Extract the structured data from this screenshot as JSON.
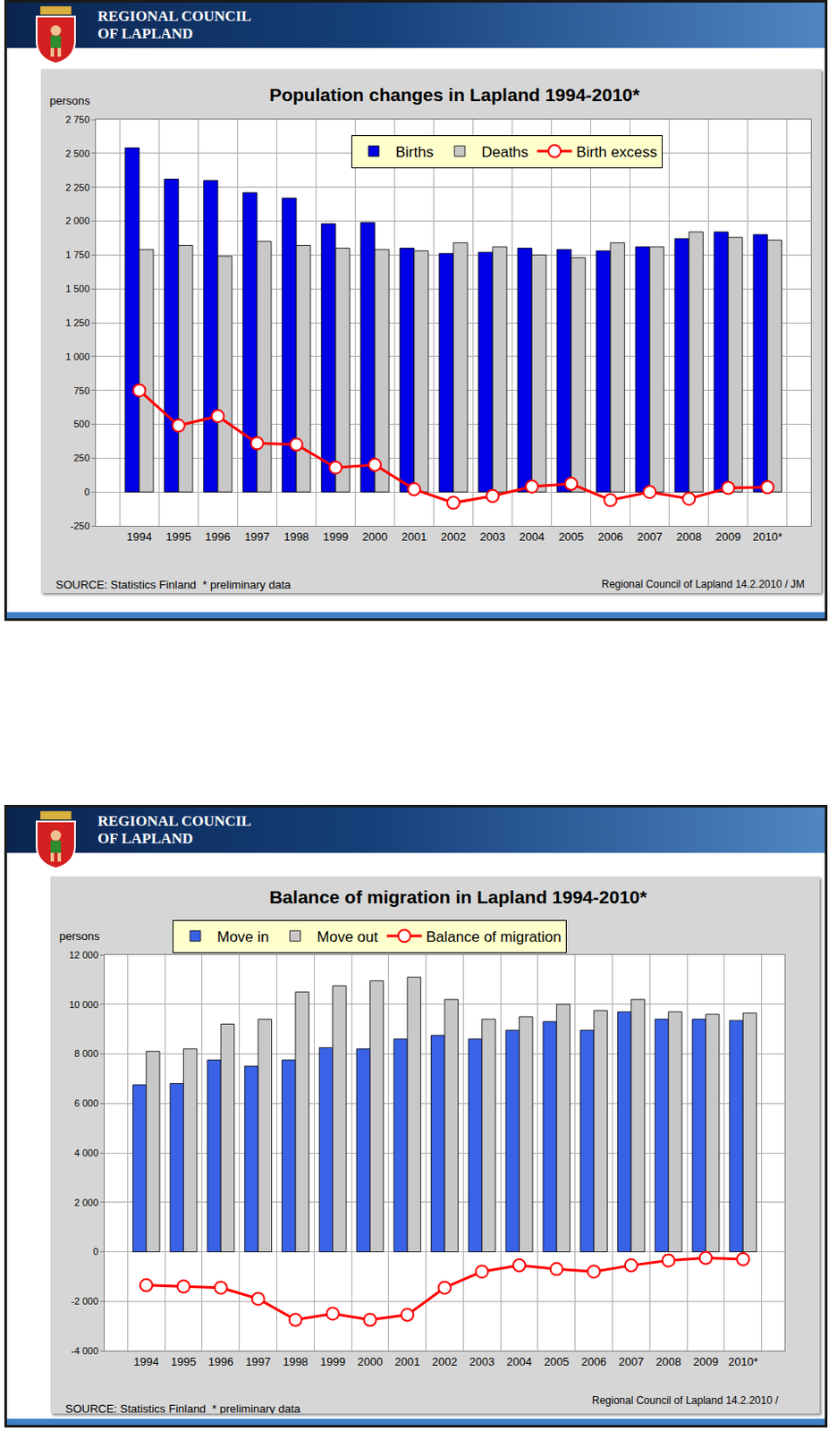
{
  "header": {
    "lines": [
      "REGIONAL COUNCIL",
      "OF LAPLAND"
    ]
  },
  "chart_data": [
    {
      "type": "bar",
      "title": "Population changes in Lapland 1994-2010*",
      "y_label": "persons",
      "categories": [
        "1994",
        "1995",
        "1996",
        "1997",
        "1998",
        "1999",
        "2000",
        "2001",
        "2002",
        "2003",
        "2004",
        "2005",
        "2006",
        "2007",
        "2008",
        "2009",
        "2010*"
      ],
      "series": [
        {
          "name": "Births",
          "type": "bar",
          "color": "#0000e6",
          "values": [
            2540,
            2310,
            2300,
            2210,
            2170,
            1980,
            1990,
            1800,
            1760,
            1770,
            1800,
            1790,
            1780,
            1810,
            1870,
            1920,
            1900
          ]
        },
        {
          "name": "Deaths",
          "type": "bar",
          "color": "#c8c8c8",
          "values": [
            1790,
            1820,
            1740,
            1850,
            1820,
            1800,
            1790,
            1780,
            1840,
            1810,
            1750,
            1730,
            1840,
            1810,
            1920,
            1880,
            1860
          ]
        },
        {
          "name": "Birth excess",
          "type": "line",
          "color": "#ff0000",
          "marker": "circle",
          "line_style": "solid",
          "values": [
            750,
            490,
            560,
            360,
            350,
            180,
            200,
            20,
            -80,
            -30,
            40,
            60,
            -60,
            0,
            -50,
            30,
            35
          ]
        }
      ],
      "ylim": [
        -250,
        2750
      ],
      "yticks": [
        -250,
        0,
        250,
        500,
        750,
        {
          "value": 1000,
          "label": "1 000"
        },
        {
          "value": 1250,
          "label": "1 250"
        },
        {
          "value": 1500,
          "label": "1 500"
        },
        {
          "value": 1750,
          "label": "1 750"
        },
        {
          "value": 2000,
          "label": "2 000"
        },
        {
          "value": 2250,
          "label": "2 250"
        },
        {
          "value": 2500,
          "label": "2 500"
        },
        {
          "value": 2750,
          "label": "2 750"
        }
      ],
      "grid": true,
      "legend": "top",
      "source": "SOURCE: Statistics Finland  * preliminary data",
      "credit": "Regional Council of Lapland 14.2.2010 / JM"
    },
    {
      "type": "bar",
      "title": "Balance of migration in Lapland 1994-2010*",
      "y_label": "persons",
      "categories": [
        "1994",
        "1995",
        "1996",
        "1997",
        "1998",
        "1999",
        "2000",
        "2001",
        "2002",
        "2003",
        "2004",
        "2005",
        "2006",
        "2007",
        "2008",
        "2009",
        "2010*"
      ],
      "series": [
        {
          "name": "Move in",
          "type": "bar",
          "color": "#3a62e6",
          "values": [
            6750,
            6800,
            7750,
            7500,
            7750,
            8250,
            8200,
            8600,
            8750,
            8600,
            8950,
            9300,
            8950,
            9700,
            9400,
            9400,
            9350
          ]
        },
        {
          "name": "Move out",
          "type": "bar",
          "color": "#c8c8c8",
          "values": [
            8100,
            8200,
            9200,
            9400,
            10500,
            10750,
            10950,
            11100,
            10200,
            9400,
            9500,
            10000,
            9750,
            10200,
            9700,
            9600,
            9650
          ]
        },
        {
          "name": "Balance of migration",
          "type": "line",
          "color": "#ff0000",
          "marker": "circle",
          "line_style": "solid",
          "values": [
            -1350,
            -1400,
            -1450,
            -1900,
            -2750,
            -2500,
            -2750,
            -2550,
            -1450,
            -800,
            -550,
            -700,
            -800,
            -550,
            -350,
            -250,
            -300
          ]
        }
      ],
      "ylim": [
        -4000,
        12000
      ],
      "yticks": [
        {
          "value": -4000,
          "label": "-4 000"
        },
        {
          "value": -2000,
          "label": "-2 000"
        },
        0,
        {
          "value": 2000,
          "label": "2 000"
        },
        {
          "value": 4000,
          "label": "4 000"
        },
        {
          "value": 6000,
          "label": "6 000"
        },
        {
          "value": 8000,
          "label": "8 000"
        },
        {
          "value": 10000,
          "label": "10 000"
        },
        {
          "value": 12000,
          "label": "12 000"
        }
      ],
      "grid": true,
      "legend": "top",
      "source": "SOURCE: Statistics Finland  * preliminary data",
      "credit": "Regional Council of Lapland 14.2.2010 /"
    }
  ]
}
